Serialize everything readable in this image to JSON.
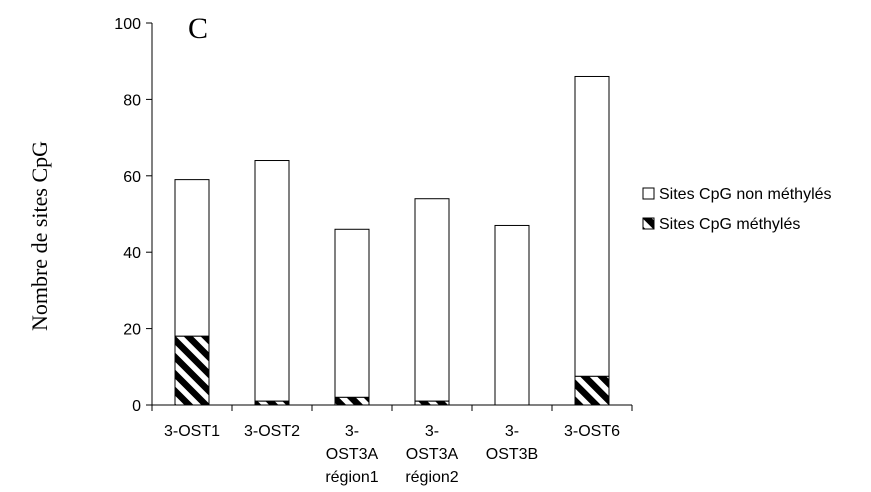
{
  "chart_data": {
    "type": "bar",
    "stacked": true,
    "panel_label": "C",
    "ylabel": "Nombre de sites CpG",
    "ylim": [
      0,
      100
    ],
    "yticks": [
      0,
      20,
      40,
      60,
      80,
      100
    ],
    "categories": [
      [
        "3-OST1"
      ],
      [
        "3-OST2"
      ],
      [
        "3-",
        "OST3A",
        "région1"
      ],
      [
        "3-",
        "OST3A",
        "région2"
      ],
      [
        "3-",
        "OST3B"
      ],
      [
        "3-OST6"
      ]
    ],
    "series": [
      {
        "name": "Sites CpG méthylés",
        "fill": "hatched",
        "color": "#000000",
        "values": [
          18,
          1,
          2,
          1,
          0,
          7.5
        ]
      },
      {
        "name": "Sites CpG non méthylés",
        "fill": "white",
        "color": "#ffffff",
        "values": [
          41,
          63,
          44,
          53,
          47,
          78.5
        ]
      }
    ],
    "legend_order": [
      "Sites CpG non méthylés",
      "Sites CpG méthylés"
    ],
    "legend_position": "right",
    "grid": false
  }
}
